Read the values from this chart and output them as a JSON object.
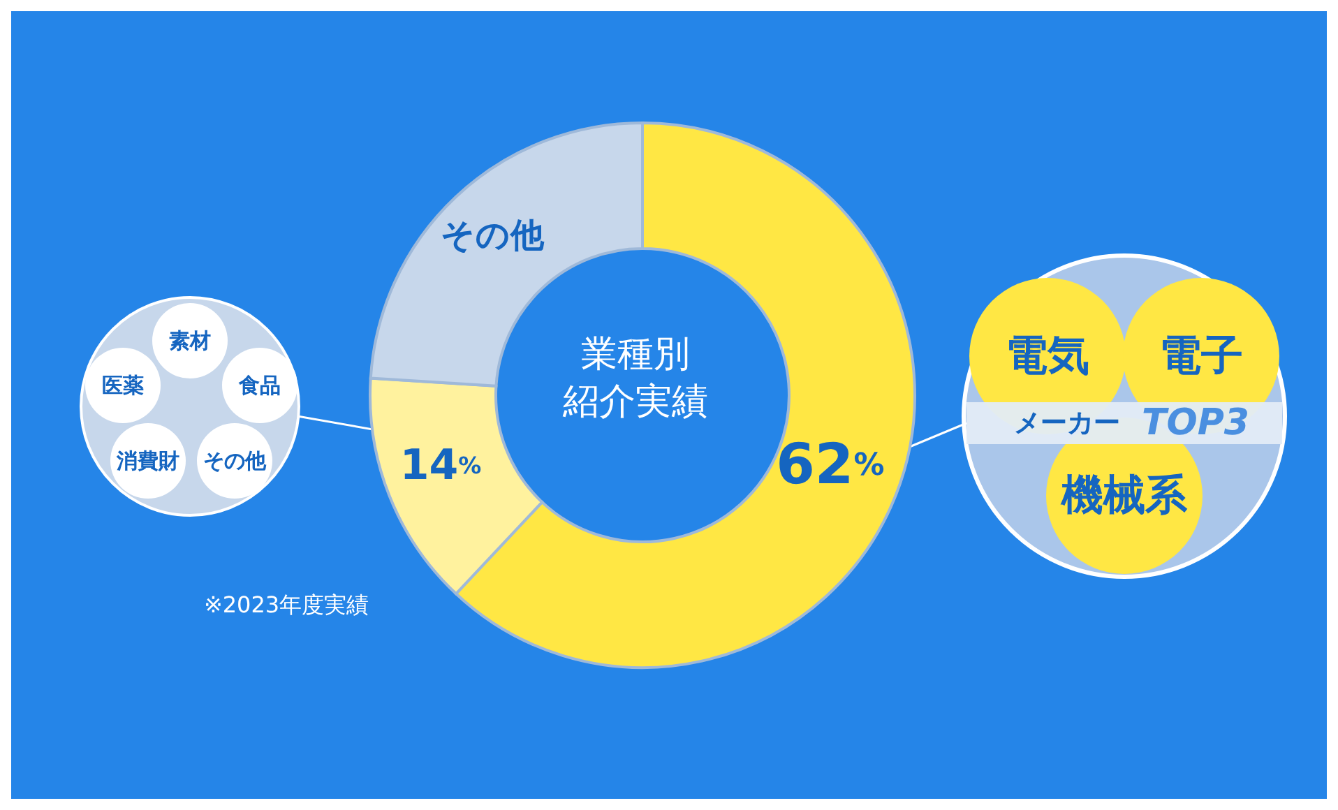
{
  "chart_data": {
    "type": "donut",
    "title": "業種別紹介実績",
    "categories": [
      null,
      null,
      "その他"
    ],
    "values": [
      62,
      14,
      24
    ],
    "colors": [
      "#ffe744",
      "#fff29e",
      "#c7d7eb"
    ],
    "value_labels": [
      "62%",
      "14%",
      null
    ],
    "legend": false,
    "annotations": [
      "※2023年度実績",
      "素材",
      "食品",
      "その他",
      "消費財",
      "医薬",
      "電気",
      "電子",
      "メーカー",
      "TOP3",
      "機械系"
    ]
  }
}
